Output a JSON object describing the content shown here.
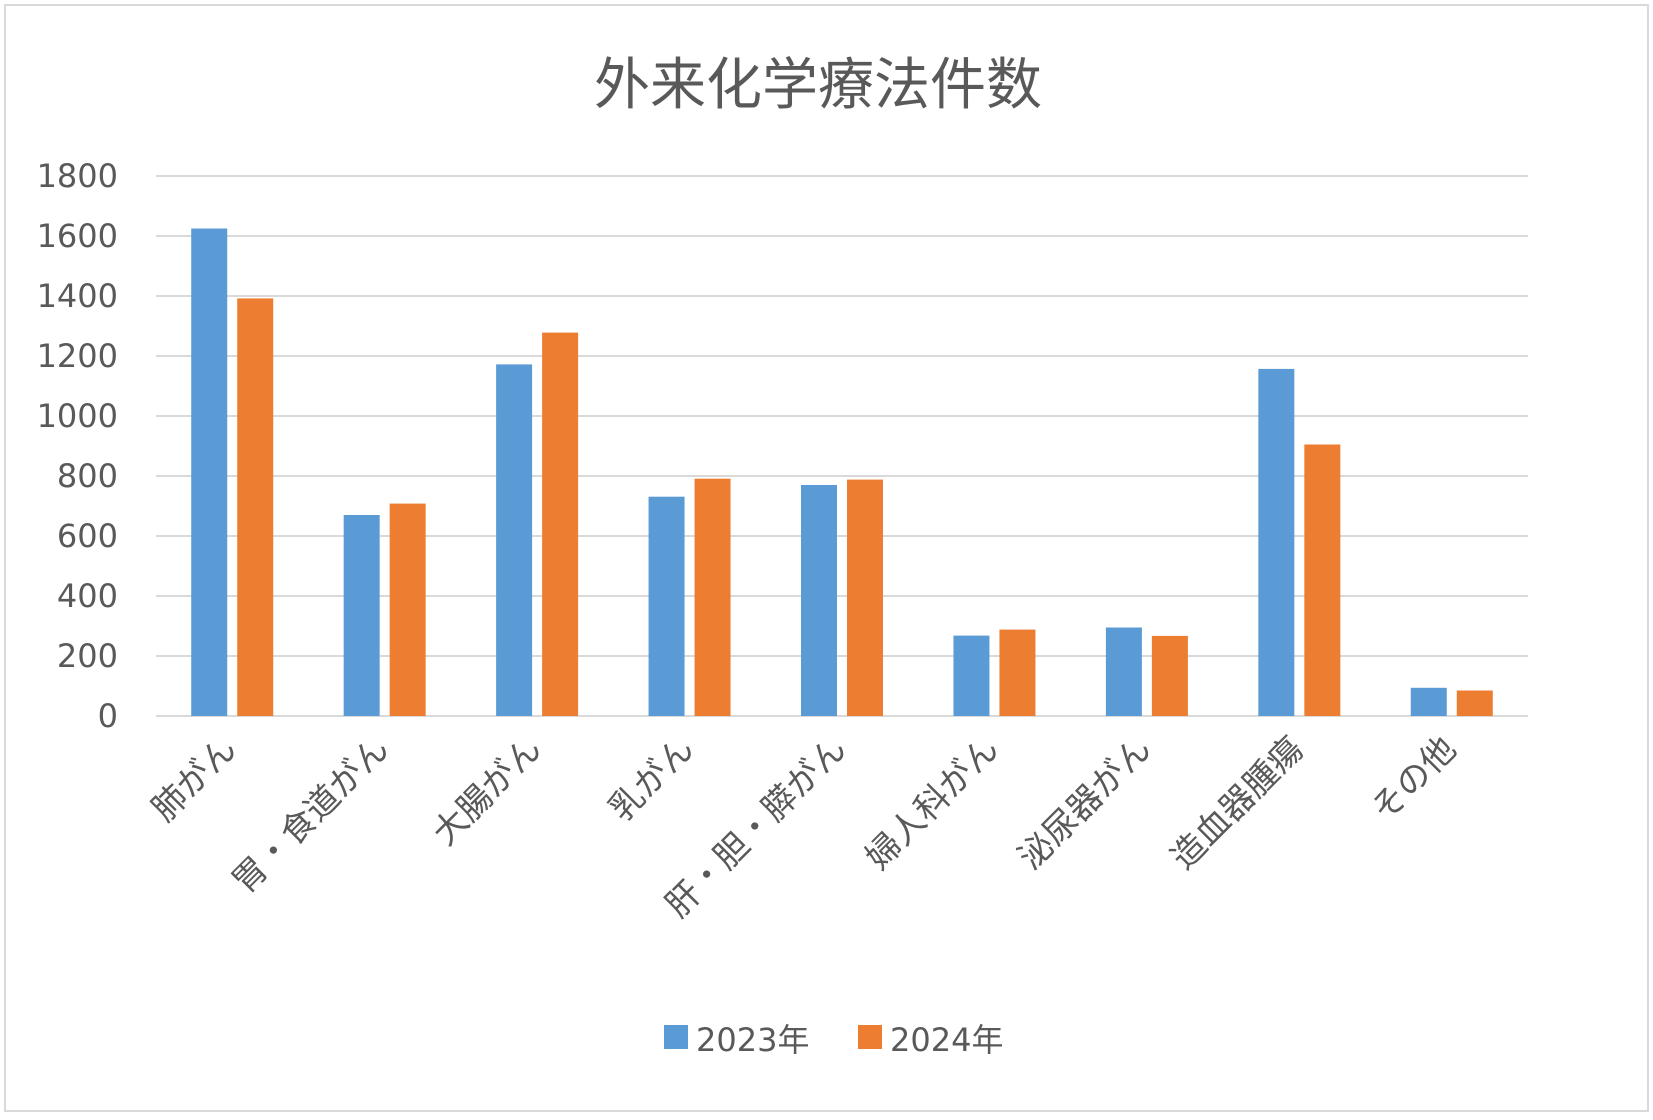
{
  "chart_data": {
    "type": "bar",
    "title": "外来化学療法件数",
    "xlabel": "",
    "ylabel": "",
    "ylim": [
      0,
      1800
    ],
    "yticks": [
      0,
      200,
      400,
      600,
      800,
      1000,
      1200,
      1400,
      1600,
      1800
    ],
    "grid": true,
    "legend_position": "bottom",
    "categories": [
      "肺がん",
      "胃・食道がん",
      "大腸がん",
      "乳がん",
      "肝・胆・膵がん",
      "婦人科がん",
      "泌尿器がん",
      "造血器腫瘍",
      "その他"
    ],
    "series": [
      {
        "name": "2023年",
        "color": "#5b9bd5",
        "values": [
          1625,
          670,
          1172,
          731,
          770,
          268,
          295,
          1157,
          94
        ]
      },
      {
        "name": "2024年",
        "color": "#ed7d31",
        "values": [
          1392,
          708,
          1278,
          791,
          788,
          288,
          267,
          905,
          85
        ]
      }
    ]
  }
}
